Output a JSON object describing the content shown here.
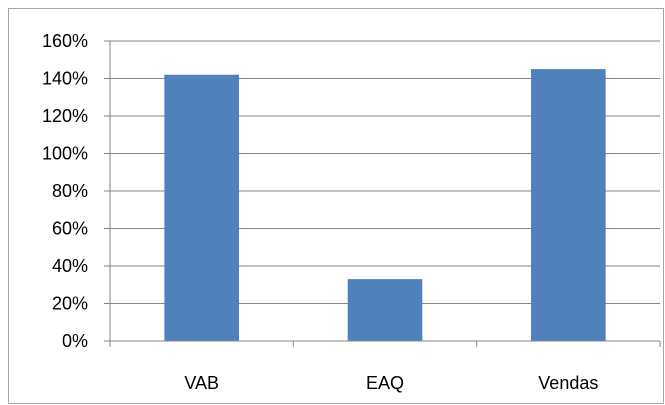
{
  "chart_data": {
    "type": "bar",
    "categories": [
      "VAB",
      "EAQ",
      "Vendas"
    ],
    "values": [
      142,
      33,
      145
    ],
    "value_unit": "%",
    "ylim": [
      0,
      160
    ],
    "yticks": [
      0,
      20,
      40,
      60,
      80,
      100,
      120,
      140,
      160
    ],
    "ytick_labels": [
      "0%",
      "20%",
      "40%",
      "60%",
      "80%",
      "100%",
      "120%",
      "140%",
      "160%"
    ],
    "grid": true,
    "legend": "none",
    "title": "",
    "xlabel": "",
    "ylabel": "",
    "colors": {
      "bar": "#4f81bd",
      "grid": "#868686",
      "axis": "#868686",
      "frame": "#a6a6a6"
    }
  }
}
